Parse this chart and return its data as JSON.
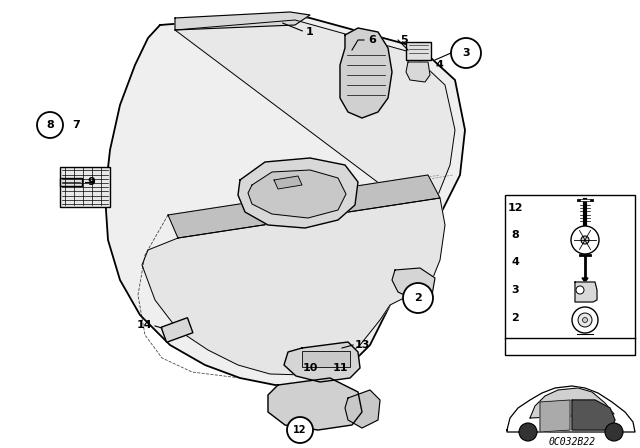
{
  "bg_color": "#ffffff",
  "line_color": "#000000",
  "code": "0C032B22",
  "fig_width": 6.4,
  "fig_height": 4.48,
  "dpi": 100
}
